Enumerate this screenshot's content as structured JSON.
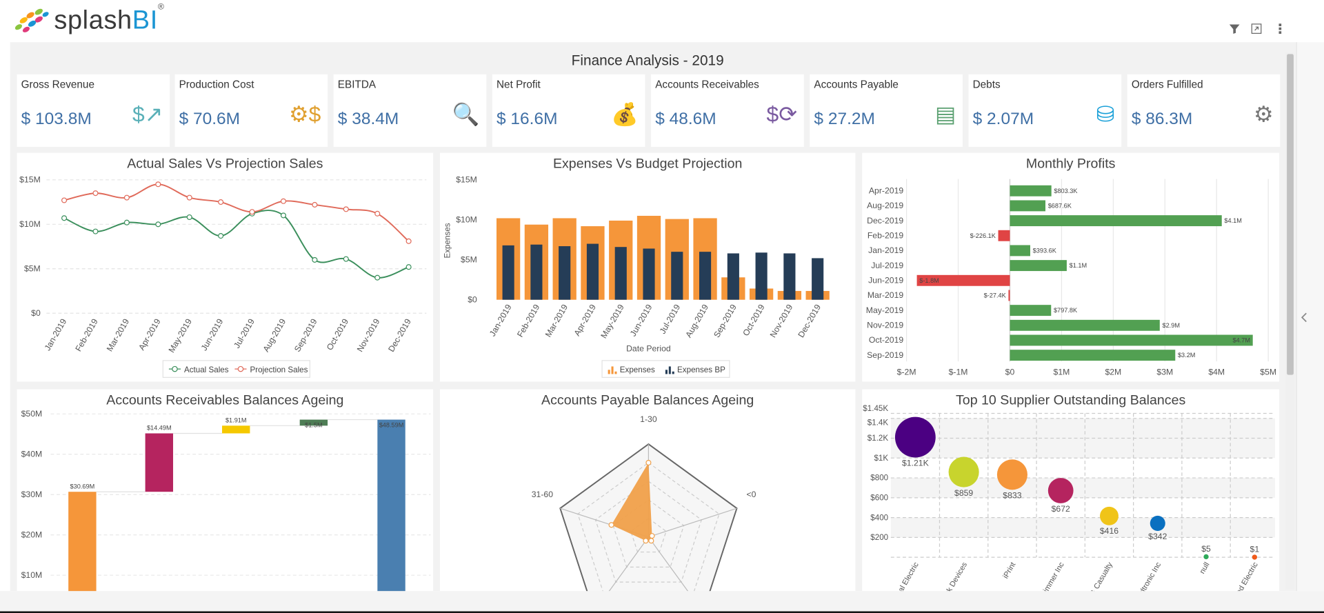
{
  "header": {
    "brand": "splash",
    "brand_accent": "BI",
    "registered": "®",
    "icons": [
      "filter-icon",
      "expand-icon",
      "more-vert-icon"
    ]
  },
  "dashboard_title": "Finance Analysis - 2019",
  "kpis": [
    {
      "label": "Gross Revenue",
      "value": "$ 103.8M",
      "icon": "revenue-chart-icon",
      "color": "#5ab0b8"
    },
    {
      "label": "Production Cost",
      "value": "$ 70.6M",
      "icon": "production-cost-icon",
      "color": "#e0a030"
    },
    {
      "label": "EBITDA",
      "value": "$ 38.4M",
      "icon": "magnifier-dollar-icon",
      "color": "#e06040"
    },
    {
      "label": "Net Profit",
      "value": "$ 16.6M",
      "icon": "money-bag-icon",
      "color": "#2a9fc0"
    },
    {
      "label": "Accounts Receivables",
      "value": "$ 48.6M",
      "icon": "dollar-cycle-icon",
      "color": "#7a5aa0"
    },
    {
      "label": "Accounts Payable",
      "value": "$ 27.2M",
      "icon": "invoice-icon",
      "color": "#5aa070"
    },
    {
      "label": "Debts",
      "value": "$ 2.07M",
      "icon": "weight-dollar-icon",
      "color": "#1aa0d8"
    },
    {
      "label": "Orders Fulfilled",
      "value": "$ 86.3M",
      "icon": "gears-icon",
      "color": "#777777"
    }
  ],
  "chart_data": [
    {
      "id": "sales",
      "type": "line",
      "title": "Actual Sales Vs Projection Sales",
      "categories": [
        "Jan-2019",
        "Feb-2019",
        "Mar-2019",
        "Apr-2019",
        "May-2019",
        "Jun-2019",
        "Jul-2019",
        "Aug-2019",
        "Sep-2019",
        "Oct-2019",
        "Nov-2019",
        "Dec-2019"
      ],
      "yticks": [
        "$0",
        "$5M",
        "$10M",
        "$15M"
      ],
      "ylim": [
        0,
        15
      ],
      "grid": true,
      "legend": "bottom",
      "series": [
        {
          "name": "Actual Sales",
          "color": "#3b8f5c",
          "values": [
            10.7,
            9.2,
            10.2,
            10.0,
            10.8,
            8.7,
            11.2,
            11.0,
            6.0,
            6.1,
            4.0,
            5.2
          ]
        },
        {
          "name": "Projection Sales",
          "color": "#e06a5a",
          "values": [
            12.7,
            13.5,
            13.0,
            14.5,
            13.0,
            12.5,
            11.4,
            12.6,
            12.2,
            11.7,
            11.2,
            8.1
          ]
        }
      ]
    },
    {
      "id": "expenses",
      "type": "bar",
      "title": "Expenses Vs Budget Projection",
      "xlabel": "Date Period",
      "ylabel": "Expenses",
      "categories": [
        "Jan-2019",
        "Feb-2019",
        "Mar-2019",
        "Apr-2019",
        "May-2019",
        "Jun-2019",
        "Jul-2019",
        "Aug-2019",
        "Sep-2019",
        "Oct-2019",
        "Nov-2019",
        "Dec-2019"
      ],
      "yticks": [
        "$0",
        "$5M",
        "$10M",
        "$15M"
      ],
      "ylim": [
        0,
        15
      ],
      "legend": "bottom",
      "series": [
        {
          "name": "Expenses",
          "color": "#f5963a",
          "values": [
            10.2,
            9.4,
            10.2,
            9.2,
            9.9,
            10.5,
            10.1,
            10.2,
            2.8,
            1.4,
            1.1,
            1.1
          ]
        },
        {
          "name": "Expenses BP",
          "color": "#253d57",
          "values": [
            6.8,
            6.9,
            6.7,
            7.0,
            6.6,
            6.4,
            6.0,
            6.0,
            5.8,
            5.9,
            5.8,
            5.2
          ]
        }
      ]
    },
    {
      "id": "profits",
      "type": "bar",
      "orientation": "horizontal",
      "title": "Monthly Profits",
      "categories": [
        "Apr-2019",
        "Aug-2019",
        "Dec-2019",
        "Feb-2019",
        "Jan-2019",
        "Jul-2019",
        "Jun-2019",
        "Mar-2019",
        "May-2019",
        "Nov-2019",
        "Oct-2019",
        "Sep-2019"
      ],
      "values": [
        0.8033,
        0.6876,
        4.1,
        -0.2261,
        0.3936,
        1.1,
        -1.8,
        -0.0274,
        0.7978,
        2.9,
        4.7,
        3.2
      ],
      "labels": [
        "$803.3K",
        "$687.6K",
        "$4.1M",
        "$-226.1K",
        "$393.6K",
        "$1.1M",
        "$-1.8M",
        "$-27.4K",
        "$797.8K",
        "$2.9M",
        "$4.7M",
        "$3.2M"
      ],
      "xticks": [
        "$-2M",
        "$-1M",
        "$0",
        "$1M",
        "$2M",
        "$3M",
        "$4M",
        "$5M"
      ],
      "xlim": [
        -2,
        5
      ],
      "positive_color": "#52a052",
      "negative_color": "#e04444"
    },
    {
      "id": "receivables",
      "type": "bar",
      "subtype": "waterfall",
      "title": "Accounts Receivables Balances Ageing",
      "values": [
        30.69,
        14.49,
        1.91,
        1.5,
        48.59
      ],
      "labels": [
        "$30.69M",
        "$14.49M",
        "$1.91M",
        "$1.5M",
        "$48.59M"
      ],
      "colors": [
        "#f5963a",
        "#b5245f",
        "#f5c800",
        "#4e7d55",
        "#4a7fb0"
      ],
      "yticks": [
        "$10M",
        "$20M",
        "$30M",
        "$40M",
        "$50M"
      ],
      "ylim": [
        0,
        50
      ]
    },
    {
      "id": "payables",
      "type": "radar",
      "title": "Accounts Payable Balances Ageing",
      "axes": [
        "1-30",
        "<0",
        "",
        "",
        "31-60"
      ],
      "values": [
        0.8,
        0.04,
        0.05,
        0.05,
        0.42
      ],
      "color": "#f0a04a"
    },
    {
      "id": "suppliers",
      "type": "scatter",
      "subtype": "bubble",
      "title": "Top 10 Supplier Outstanding Balances",
      "categories": [
        "al Electric",
        "rk Devices",
        "iPrint",
        "immer Inc",
        "Property & Casualty",
        "dtronic Inc",
        "null",
        "ed Electric"
      ],
      "values": [
        1210,
        859,
        833,
        672,
        416,
        342,
        5,
        1
      ],
      "labels": [
        "$1.21K",
        "$859",
        "$833",
        "$672",
        "$416",
        "$342",
        "$5",
        "$1"
      ],
      "colors": [
        "#4b0082",
        "#c8d42d",
        "#f5963a",
        "#b5245f",
        "#f0c419",
        "#0a70c0",
        "#2eaa5a",
        "#f05a1a"
      ],
      "yticks": [
        "$200",
        "$400",
        "$600",
        "$800",
        "$1K",
        "$1.2K",
        "$1.4K",
        "$1.45K"
      ],
      "ylim": [
        0,
        1450
      ]
    }
  ]
}
